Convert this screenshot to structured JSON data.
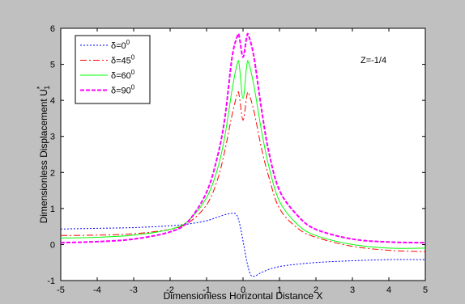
{
  "chart_data": {
    "type": "line",
    "xlabel": "Dimensionless Horizontal Distance X",
    "ylabel": "Dimensionless Displacement U",
    "ylabel_super": "*",
    "ylabel_sub": "1",
    "annotation": "Z=-1/4",
    "xlim": [
      -5,
      5
    ],
    "ylim": [
      -1,
      6
    ],
    "xticks": [
      -5,
      -4,
      -3,
      -2,
      -1,
      0,
      1,
      2,
      3,
      4,
      5
    ],
    "yticks": [
      -1,
      0,
      1,
      2,
      3,
      4,
      5,
      6
    ],
    "grid": false,
    "legend_position": "top-left",
    "series": [
      {
        "name": "δ=0⁰",
        "legend_base": "δ=0",
        "legend_sup": "0",
        "color": "#0000ff",
        "dash": "2,2",
        "width": 1,
        "x": [
          -5,
          -4,
          -3,
          -2,
          -1.5,
          -1,
          -0.7,
          -0.4,
          -0.2,
          -0.1,
          0,
          0.1,
          0.2,
          0.3,
          0.5,
          0.8,
          1.2,
          2,
          3,
          4,
          5
        ],
        "y": [
          0.43,
          0.45,
          0.47,
          0.52,
          0.57,
          0.66,
          0.76,
          0.85,
          0.85,
          0.6,
          0.1,
          -0.45,
          -0.82,
          -0.88,
          -0.78,
          -0.66,
          -0.58,
          -0.5,
          -0.45,
          -0.42,
          -0.42
        ]
      },
      {
        "name": "δ=45⁰",
        "legend_base": "δ=45",
        "legend_sup": "0",
        "color": "#ff0000",
        "dash": "8,3,2,3",
        "width": 1,
        "x": [
          -5,
          -4,
          -3,
          -2,
          -1.5,
          -1,
          -0.7,
          -0.5,
          -0.3,
          -0.15,
          -0.1,
          0,
          0.1,
          0.15,
          0.3,
          0.5,
          0.7,
          1,
          1.5,
          2,
          3,
          4,
          5
        ],
        "y": [
          0.25,
          0.26,
          0.3,
          0.42,
          0.6,
          1.1,
          1.8,
          2.6,
          3.6,
          4.2,
          4.1,
          3.45,
          4.1,
          4.2,
          3.7,
          2.7,
          1.9,
          1.0,
          0.45,
          0.2,
          -0.05,
          -0.16,
          -0.2
        ]
      },
      {
        "name": "δ=60⁰",
        "legend_base": "δ=60",
        "legend_sup": "0",
        "color": "#00ff00",
        "dash": "",
        "width": 1,
        "x": [
          -5,
          -4,
          -3,
          -2,
          -1.5,
          -1,
          -0.7,
          -0.5,
          -0.3,
          -0.15,
          -0.1,
          0,
          0.1,
          0.15,
          0.3,
          0.5,
          0.7,
          1,
          1.5,
          2,
          3,
          4,
          5
        ],
        "y": [
          0.18,
          0.2,
          0.26,
          0.42,
          0.66,
          1.3,
          2.1,
          3.0,
          4.3,
          5.05,
          4.95,
          4.05,
          4.95,
          5.05,
          4.4,
          3.2,
          2.2,
          1.2,
          0.55,
          0.25,
          0.0,
          -0.1,
          -0.1
        ]
      },
      {
        "name": "δ=90⁰",
        "legend_base": "δ=90",
        "legend_sup": "0",
        "color": "#ff00ff",
        "dash": "5,2",
        "width": 2,
        "x": [
          -5,
          -4,
          -3,
          -2,
          -1.5,
          -1,
          -0.7,
          -0.5,
          -0.3,
          -0.15,
          -0.1,
          0,
          0.1,
          0.15,
          0.3,
          0.5,
          0.7,
          1,
          1.5,
          2,
          3,
          4,
          5
        ],
        "y": [
          0.05,
          0.08,
          0.15,
          0.35,
          0.65,
          1.45,
          2.45,
          3.5,
          5.2,
          5.8,
          5.75,
          5.2,
          5.75,
          5.8,
          5.2,
          3.8,
          2.6,
          1.5,
          0.8,
          0.42,
          0.15,
          0.07,
          0.05
        ]
      }
    ]
  }
}
